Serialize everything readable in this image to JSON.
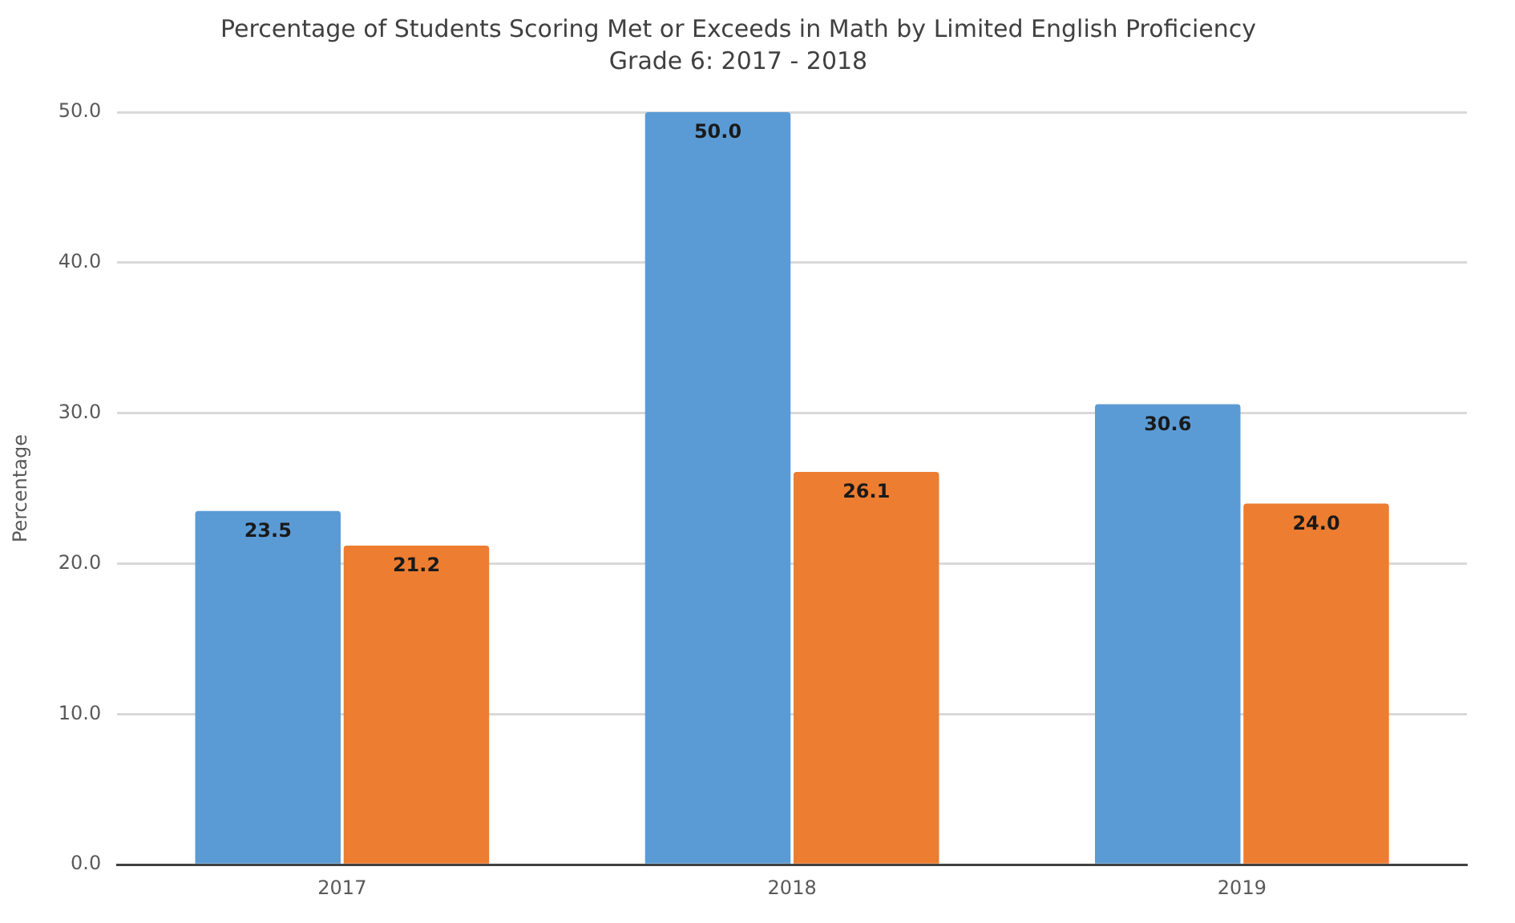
{
  "chart_data": {
    "type": "bar",
    "title": "Percentage of Students Scoring Met or Exceeds in Math by Limited English Proficiency",
    "subtitle": "Grade 6: 2017 - 2018",
    "ylabel": "Percentage",
    "categories": [
      "2017",
      "2018",
      "2019"
    ],
    "series": [
      {
        "color": "#5b9bd5",
        "values": [
          23.5,
          50,
          30.6
        ],
        "value_labels": [
          "23.5",
          "50.0",
          "30.6"
        ]
      },
      {
        "color": "#ed7d31",
        "values": [
          21.2,
          26.1,
          24
        ],
        "value_labels": [
          "21.2",
          "26.1",
          "24.0"
        ]
      }
    ],
    "ylim": [
      0,
      50
    ],
    "yticks": [
      {
        "value": 0,
        "label": "0.0"
      },
      {
        "value": 10,
        "label": "10.0"
      },
      {
        "value": 20,
        "label": "20.0"
      },
      {
        "value": 30,
        "label": "30.0"
      },
      {
        "value": 40,
        "label": "40.0"
      },
      {
        "value": 50,
        "label": "50.0"
      }
    ],
    "grid": "y"
  }
}
